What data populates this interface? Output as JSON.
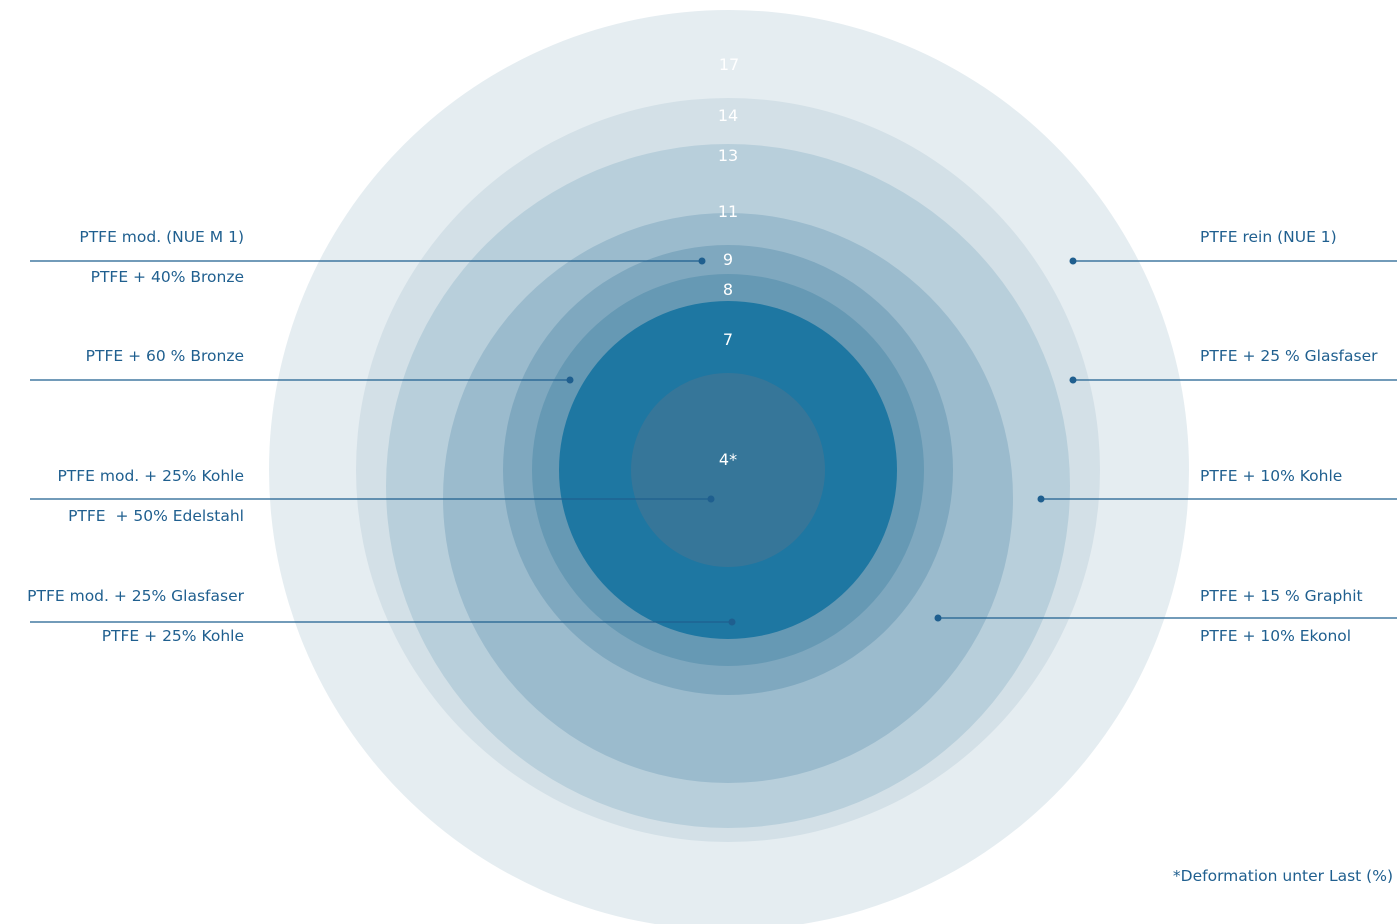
{
  "diagram": {
    "rings": [
      {
        "value": "17",
        "color": "#e5edf1",
        "label_color": "#f2f6f8"
      },
      {
        "value": "14",
        "color": "#d3e0e7",
        "label_color": "#ffffff"
      },
      {
        "value": "13",
        "color": "#b8cfdb",
        "label_color": "#ffffff"
      },
      {
        "value": "11",
        "color": "#9bbbcd",
        "label_color": "#ffffff"
      },
      {
        "value": "9",
        "color": "#7fa8bf",
        "label_color": "#ffffff"
      },
      {
        "value": "8",
        "color": "#6699b4",
        "label_color": "#ffffff"
      },
      {
        "value": "7",
        "color": "#1e77a2",
        "label_color": "#ffffff"
      },
      {
        "value": "4*",
        "color": "#367699",
        "label_color": "#ffffff"
      }
    ],
    "left_labels": [
      {
        "ring": "9",
        "above": "PTFE mod. (NUE M 1)",
        "below": "PTFE + 40% Bronze"
      },
      {
        "ring": "8",
        "above": "PTFE + 60 % Bronze",
        "below": ""
      },
      {
        "ring": "4*",
        "above": "PTFE mod. + 25% Kohle",
        "below": "PTFE  + 50% Edelstahl"
      },
      {
        "ring": "7",
        "above": "PTFE mod. + 25% Glasfaser",
        "below": "PTFE + 25% Kohle"
      }
    ],
    "right_labels": [
      {
        "ring": "17",
        "above": "PTFE rein (NUE 1)",
        "below": ""
      },
      {
        "ring": "14",
        "above": "PTFE + 25 % Glasfaser",
        "below": ""
      },
      {
        "ring": "13",
        "above": "PTFE + 10% Kohle",
        "below": ""
      },
      {
        "ring": "11",
        "above": "PTFE + 15 % Graphit",
        "below": "PTFE + 10% Ekonol"
      }
    ],
    "footnote": "*Deformation unter Last (%)",
    "accent_color": "#1f5f8f"
  }
}
